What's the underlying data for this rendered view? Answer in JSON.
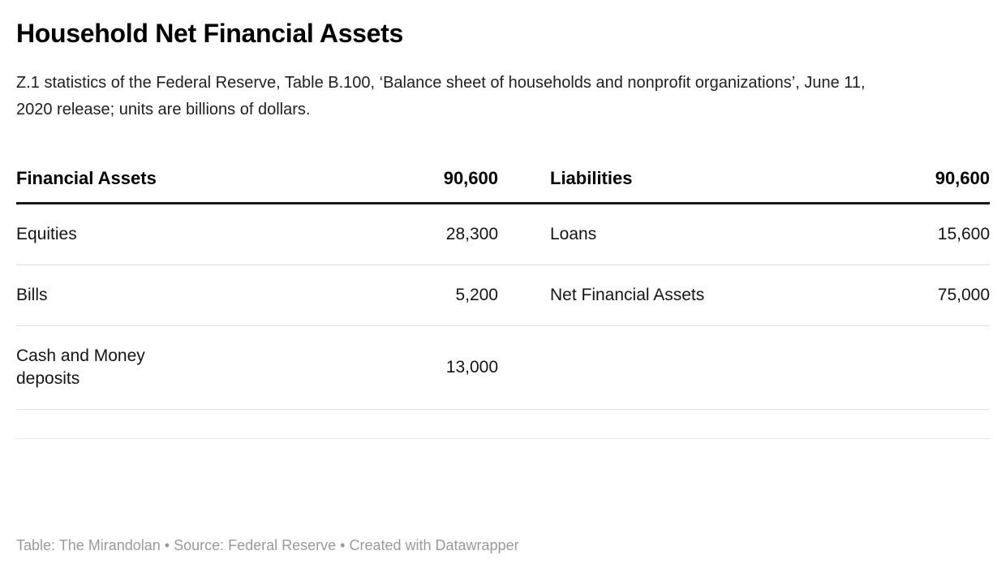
{
  "chart_data": {
    "type": "table",
    "title": "Household Net Financial Assets",
    "subtitle": "Z.1 statistics of the Federal Reserve, Table B.100, ‘Balance sheet of households and nonprofit organizations’, June 11, 2020 release; units are billions of dollars.",
    "units": "billions of dollars",
    "columns": [
      "Financial Assets",
      "90,600",
      "Liabilities",
      "90,600"
    ],
    "rows": [
      [
        "Equities",
        "28,300",
        "Loans",
        "15,600"
      ],
      [
        "Bills",
        "5,200",
        "Net Financial Assets",
        "75,000"
      ],
      [
        "Cash and Money deposits",
        "13,000",
        "",
        ""
      ]
    ],
    "values": {
      "financial_assets_total": 90600,
      "equities": 28300,
      "bills": 5200,
      "cash_and_money_deposits": 13000,
      "liabilities_total": 90600,
      "loans": 15600,
      "net_financial_assets": 75000
    },
    "footer": "Table: The Mirandolan • Source: Federal Reserve • Created with Datawrapper"
  },
  "colors": {
    "background": "#ffffff",
    "title_text": "#000000",
    "body_text": "#1a1a1a",
    "header_rule": "#181818",
    "row_divider": "#e0e0e0",
    "footer_text": "#9a9a9a"
  }
}
